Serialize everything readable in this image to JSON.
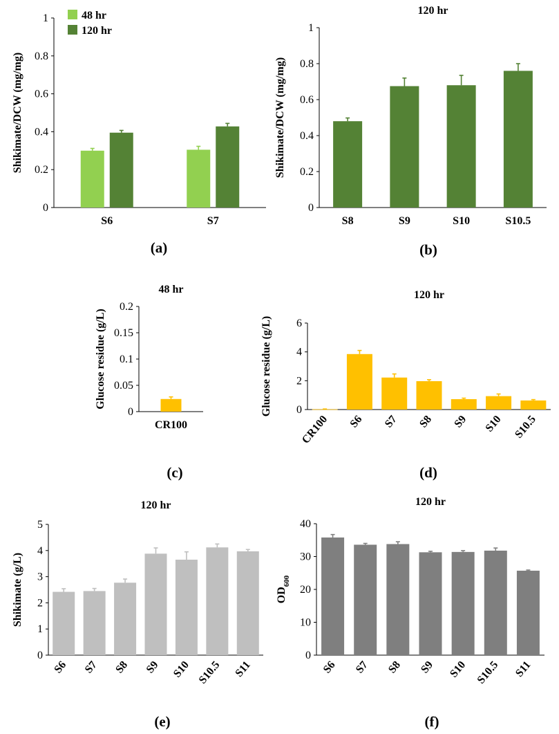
{
  "chart_data": [
    {
      "type": "bar",
      "panel_label": "(a)",
      "title": "",
      "ylabel": "Shikimate/DCW (mg/mg)",
      "xlabel": "",
      "ylim": [
        0,
        1
      ],
      "yticks": [
        0,
        0.2,
        0.4,
        0.6,
        0.8,
        1
      ],
      "ytick_labels": [
        "0",
        "0.2",
        "0.4",
        "0.6",
        "0.8",
        "1"
      ],
      "categories": [
        "S6",
        "S7"
      ],
      "series": [
        {
          "name": "48 hr",
          "color": "#92d050",
          "values": [
            0.3,
            0.305
          ],
          "errors": [
            0.012,
            0.018
          ]
        },
        {
          "name": "120 hr",
          "color": "#548235",
          "values": [
            0.395,
            0.428
          ],
          "errors": [
            0.012,
            0.016
          ]
        }
      ],
      "legend": {
        "position": "top-left",
        "entries": [
          "48 hr",
          "120 hr"
        ]
      },
      "grid": false
    },
    {
      "type": "bar",
      "panel_label": "(b)",
      "title": "120 hr",
      "ylabel": "Shikimate/DCW (mg/mg)",
      "xlabel": "",
      "ylim": [
        0,
        1
      ],
      "yticks": [
        0,
        0.2,
        0.4,
        0.6,
        0.8,
        1
      ],
      "ytick_labels": [
        "0",
        "0.2",
        "0.4",
        "0.6",
        "0.8",
        "1"
      ],
      "categories": [
        "S8",
        "S9",
        "S10",
        "S10.5"
      ],
      "series": [
        {
          "name": "120 hr",
          "color": "#548235",
          "values": [
            0.48,
            0.675,
            0.68,
            0.76
          ],
          "errors": [
            0.018,
            0.045,
            0.055,
            0.04
          ]
        }
      ],
      "grid": false
    },
    {
      "type": "bar",
      "panel_label": "(c)",
      "title": "48 hr",
      "ylabel": "Glucose residue (g/L)",
      "xlabel": "",
      "ylim": [
        0,
        0.2
      ],
      "yticks": [
        0,
        0.05,
        0.1,
        0.15,
        0.2
      ],
      "ytick_labels": [
        "0",
        "0.05",
        "0.1",
        "0.15",
        "0.2"
      ],
      "categories": [
        "CR100"
      ],
      "series": [
        {
          "name": "48 hr",
          "color": "#ffc000",
          "values": [
            0.024
          ],
          "errors": [
            0.004
          ]
        }
      ],
      "grid": false
    },
    {
      "type": "bar",
      "panel_label": "(d)",
      "title": "120 hr",
      "ylabel": "Glucose residue (g/L)",
      "xlabel": "",
      "ylim": [
        0,
        6
      ],
      "yticks": [
        0,
        2,
        4,
        6
      ],
      "ytick_labels": [
        "0",
        "2",
        "4",
        "6"
      ],
      "categories": [
        "CR100",
        "S6",
        "S7",
        "S8",
        "S9",
        "S10",
        "S10.5"
      ],
      "series": [
        {
          "name": "120 hr",
          "color": "#ffc000",
          "values": [
            0.02,
            3.85,
            2.22,
            1.97,
            0.72,
            0.93,
            0.63
          ],
          "errors": [
            0.02,
            0.25,
            0.25,
            0.1,
            0.07,
            0.15,
            0.06
          ]
        }
      ],
      "grid": false
    },
    {
      "type": "bar",
      "panel_label": "(e)",
      "title": "120 hr",
      "ylabel": "Shikimate (g/L)",
      "xlabel": "",
      "ylim": [
        0,
        5
      ],
      "yticks": [
        0,
        1,
        2,
        3,
        4,
        5
      ],
      "ytick_labels": [
        "0",
        "1",
        "2",
        "3",
        "4",
        "5"
      ],
      "categories": [
        "S6",
        "S7",
        "S8",
        "S9",
        "S10",
        "S10.5",
        "S11"
      ],
      "series": [
        {
          "name": "120 hr",
          "color": "#bfbfbf",
          "values": [
            2.42,
            2.45,
            2.77,
            3.88,
            3.65,
            4.12,
            3.97
          ],
          "errors": [
            0.12,
            0.1,
            0.14,
            0.22,
            0.3,
            0.13,
            0.07
          ]
        }
      ],
      "grid": false
    },
    {
      "type": "bar",
      "panel_label": "(f)",
      "title": "120 hr",
      "ylabel": "OD",
      "ylabel_subscript": "600",
      "xlabel": "",
      "ylim": [
        0,
        40
      ],
      "yticks": [
        0,
        10,
        20,
        30,
        40
      ],
      "ytick_labels": [
        "0",
        "10",
        "20",
        "30",
        "40"
      ],
      "categories": [
        "S6",
        "S7",
        "S8",
        "S9",
        "S10",
        "S10.5",
        "S11"
      ],
      "series": [
        {
          "name": "120 hr",
          "color": "#7f7f7f",
          "values": [
            35.8,
            33.6,
            33.8,
            31.3,
            31.4,
            31.8,
            25.7
          ],
          "errors": [
            0.9,
            0.4,
            0.7,
            0.3,
            0.4,
            0.8,
            0.2
          ]
        }
      ],
      "grid": false
    }
  ]
}
